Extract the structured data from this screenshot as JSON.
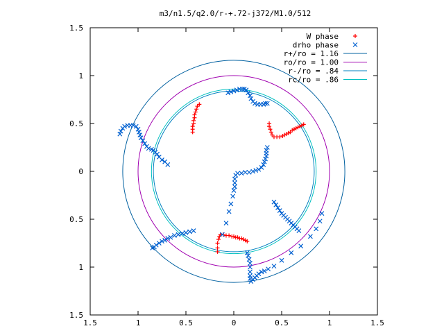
{
  "chart_data": {
    "type": "scatter",
    "title": "m3/n1.5/q2.0/r-+.72-j372/M1.0/512",
    "xlabel": "",
    "ylabel": "",
    "xlim": [
      -1.5,
      1.5
    ],
    "ylim": [
      -1.5,
      1.5
    ],
    "x_ticks": [
      "1.5",
      "1",
      "0.5",
      "0",
      "0.5",
      "1",
      "1.5"
    ],
    "y_ticks": [
      "1.5",
      "1",
      "0.5",
      "0",
      "0.5",
      "1",
      "1.5"
    ],
    "grid": false,
    "legend_position": "top-right",
    "series": [
      {
        "name": "W phase",
        "kind": "points",
        "marker": "plus",
        "color": "#ff0000",
        "points": [
          [
            0.73,
            0.49
          ],
          [
            0.71,
            0.48
          ],
          [
            0.69,
            0.47
          ],
          [
            0.67,
            0.46
          ],
          [
            0.65,
            0.45
          ],
          [
            0.63,
            0.44
          ],
          [
            0.61,
            0.43
          ],
          [
            0.59,
            0.41
          ],
          [
            0.57,
            0.4
          ],
          [
            0.55,
            0.39
          ],
          [
            0.53,
            0.38
          ],
          [
            0.51,
            0.37
          ],
          [
            0.48,
            0.36
          ],
          [
            0.45,
            0.36
          ],
          [
            0.42,
            0.36
          ],
          [
            0.4,
            0.38
          ],
          [
            0.39,
            0.41
          ],
          [
            0.38,
            0.44
          ],
          [
            0.37,
            0.47
          ],
          [
            0.37,
            0.5
          ],
          [
            -0.36,
            0.7
          ],
          [
            -0.38,
            0.68
          ],
          [
            -0.39,
            0.65
          ],
          [
            -0.4,
            0.62
          ],
          [
            -0.41,
            0.59
          ],
          [
            -0.41,
            0.56
          ],
          [
            -0.42,
            0.53
          ],
          [
            -0.42,
            0.5
          ],
          [
            -0.43,
            0.47
          ],
          [
            -0.43,
            0.44
          ],
          [
            -0.43,
            0.41
          ],
          [
            0.14,
            -0.73
          ],
          [
            0.12,
            -0.72
          ],
          [
            0.1,
            -0.71
          ],
          [
            0.08,
            -0.7
          ],
          [
            0.06,
            -0.7
          ],
          [
            0.04,
            -0.69
          ],
          [
            0.02,
            -0.69
          ],
          [
            0.0,
            -0.68
          ],
          [
            -0.02,
            -0.68
          ],
          [
            -0.05,
            -0.67
          ],
          [
            -0.08,
            -0.67
          ],
          [
            -0.11,
            -0.66
          ],
          [
            -0.14,
            -0.66
          ],
          [
            -0.15,
            -0.68
          ],
          [
            -0.16,
            -0.71
          ],
          [
            -0.17,
            -0.75
          ],
          [
            -0.17,
            -0.8
          ],
          [
            -0.17,
            -0.84
          ]
        ]
      },
      {
        "name": "drho phase",
        "kind": "points",
        "marker": "cross",
        "color": "#0060d0",
        "points": [
          [
            0.35,
            0.25
          ],
          [
            0.34,
            0.22
          ],
          [
            0.34,
            0.19
          ],
          [
            0.34,
            0.16
          ],
          [
            0.33,
            0.13
          ],
          [
            0.32,
            0.1
          ],
          [
            0.31,
            0.07
          ],
          [
            0.29,
            0.04
          ],
          [
            0.26,
            0.02
          ],
          [
            0.23,
            0.01
          ],
          [
            0.2,
            0.0
          ],
          [
            0.16,
            -0.01
          ],
          [
            0.12,
            -0.01
          ],
          [
            0.08,
            -0.02
          ],
          [
            0.04,
            -0.02
          ],
          [
            0.02,
            -0.04
          ],
          [
            0.01,
            -0.08
          ],
          [
            0.01,
            -0.12
          ],
          [
            0.01,
            -0.16
          ],
          [
            0.0,
            -0.2
          ],
          [
            -0.01,
            -0.26
          ],
          [
            -0.03,
            -0.34
          ],
          [
            -0.05,
            -0.42
          ],
          [
            -0.08,
            -0.54
          ],
          [
            -0.12,
            -0.66
          ],
          [
            -0.06,
            0.82
          ],
          [
            -0.03,
            0.83
          ],
          [
            0.0,
            0.84
          ],
          [
            0.03,
            0.85
          ],
          [
            0.06,
            0.86
          ],
          [
            0.09,
            0.86
          ],
          [
            0.11,
            0.86
          ],
          [
            0.13,
            0.85
          ],
          [
            0.15,
            0.82
          ],
          [
            0.17,
            0.79
          ],
          [
            0.18,
            0.76
          ],
          [
            0.2,
            0.73
          ],
          [
            0.22,
            0.71
          ],
          [
            0.25,
            0.7
          ],
          [
            0.28,
            0.7
          ],
          [
            0.31,
            0.7
          ],
          [
            0.33,
            0.71
          ],
          [
            0.35,
            0.71
          ],
          [
            -0.69,
            0.07
          ],
          [
            -0.72,
            0.1
          ],
          [
            -0.75,
            0.12
          ],
          [
            -0.78,
            0.15
          ],
          [
            -0.8,
            0.18
          ],
          [
            -0.82,
            0.2
          ],
          [
            -0.84,
            0.22
          ],
          [
            -0.86,
            0.23
          ],
          [
            -0.89,
            0.24
          ],
          [
            -0.91,
            0.26
          ],
          [
            -0.93,
            0.29
          ],
          [
            -0.95,
            0.32
          ],
          [
            -0.97,
            0.35
          ],
          [
            -0.98,
            0.38
          ],
          [
            -0.99,
            0.41
          ],
          [
            -1.0,
            0.44
          ],
          [
            -1.02,
            0.47
          ],
          [
            -1.05,
            0.48
          ],
          [
            -1.08,
            0.48
          ],
          [
            -1.11,
            0.48
          ],
          [
            -1.14,
            0.47
          ],
          [
            -1.16,
            0.45
          ],
          [
            -1.18,
            0.42
          ],
          [
            -1.19,
            0.39
          ],
          [
            -0.42,
            -0.62
          ],
          [
            -0.46,
            -0.63
          ],
          [
            -0.5,
            -0.64
          ],
          [
            -0.54,
            -0.65
          ],
          [
            -0.58,
            -0.66
          ],
          [
            -0.62,
            -0.67
          ],
          [
            -0.66,
            -0.69
          ],
          [
            -0.69,
            -0.7
          ],
          [
            -0.72,
            -0.72
          ],
          [
            -0.75,
            -0.73
          ],
          [
            -0.78,
            -0.75
          ],
          [
            -0.81,
            -0.77
          ],
          [
            -0.83,
            -0.79
          ],
          [
            -0.85,
            -0.8
          ],
          [
            0.42,
            -0.32
          ],
          [
            0.44,
            -0.35
          ],
          [
            0.46,
            -0.38
          ],
          [
            0.48,
            -0.41
          ],
          [
            0.5,
            -0.44
          ],
          [
            0.52,
            -0.46
          ],
          [
            0.54,
            -0.48
          ],
          [
            0.56,
            -0.5
          ],
          [
            0.58,
            -0.52
          ],
          [
            0.6,
            -0.54
          ],
          [
            0.62,
            -0.56
          ],
          [
            0.64,
            -0.58
          ],
          [
            0.66,
            -0.6
          ],
          [
            0.68,
            -0.62
          ],
          [
            0.14,
            -0.85
          ],
          [
            0.15,
            -0.88
          ],
          [
            0.16,
            -0.92
          ],
          [
            0.17,
            -0.96
          ],
          [
            0.17,
            -1.0
          ],
          [
            0.17,
            -1.05
          ],
          [
            0.17,
            -1.09
          ],
          [
            0.17,
            -1.12
          ],
          [
            0.18,
            -1.15
          ],
          [
            0.2,
            -1.13
          ],
          [
            0.22,
            -1.11
          ],
          [
            0.24,
            -1.09
          ],
          [
            0.26,
            -1.07
          ],
          [
            0.29,
            -1.05
          ],
          [
            0.32,
            -1.04
          ],
          [
            0.36,
            -1.02
          ],
          [
            0.42,
            -0.99
          ],
          [
            0.5,
            -0.93
          ],
          [
            0.6,
            -0.85
          ],
          [
            0.7,
            -0.78
          ],
          [
            0.8,
            -0.68
          ],
          [
            0.86,
            -0.6
          ],
          [
            0.9,
            -0.52
          ],
          [
            0.92,
            -0.44
          ]
        ]
      },
      {
        "name": "r+/ro = 1.16",
        "kind": "circle",
        "r": 1.16,
        "color": "#0060a0"
      },
      {
        "name": "ro/ro = 1.00",
        "kind": "circle",
        "r": 1.0,
        "color": "#a000b0"
      },
      {
        "name": "r-/ro = .84",
        "kind": "circle",
        "r": 0.84,
        "color": "#0080c0"
      },
      {
        "name": "rc/ro = .86",
        "kind": "circle",
        "r": 0.86,
        "color": "#00c0c0"
      }
    ]
  }
}
